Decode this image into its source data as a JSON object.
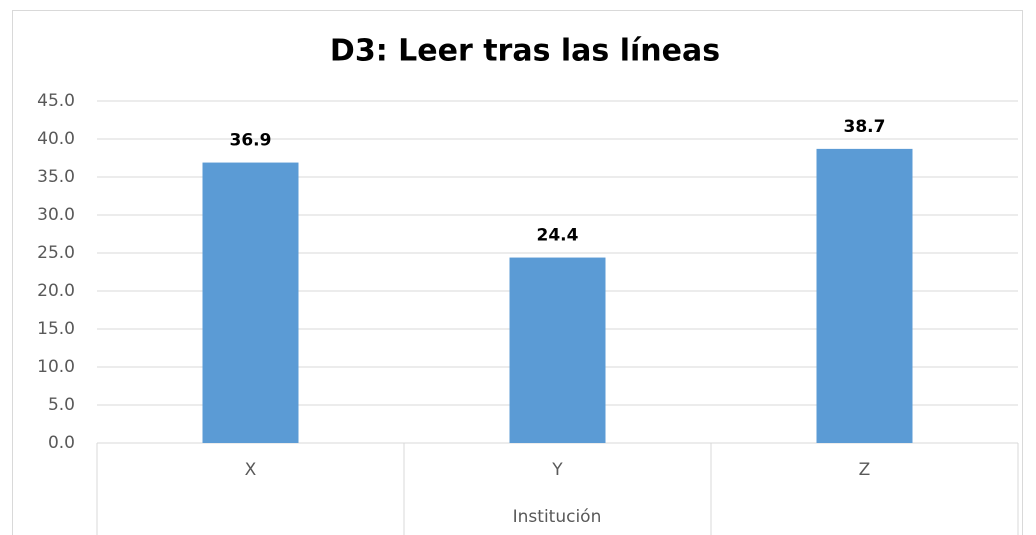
{
  "chart_data": {
    "type": "bar",
    "title": "D3: Leer tras las líneas",
    "x_label": "Institución",
    "categories": [
      "X",
      "Y",
      "Z"
    ],
    "values": [
      36.9,
      24.4,
      38.7
    ],
    "color": "#5b9bd5",
    "ylim": [
      0,
      45
    ],
    "yticks": [
      {
        "value": 0,
        "label": "0.0"
      },
      {
        "value": 5,
        "label": "5.0"
      },
      {
        "value": 10,
        "label": "10.0"
      },
      {
        "value": 15,
        "label": "15.0"
      },
      {
        "value": 20,
        "label": "20.0"
      },
      {
        "value": 25,
        "label": "25.0"
      },
      {
        "value": 30,
        "label": "30.0"
      },
      {
        "value": 35,
        "label": "35.0"
      },
      {
        "value": 40,
        "label": "40.0"
      },
      {
        "value": 45,
        "label": "45.0"
      }
    ],
    "grid": true
  }
}
